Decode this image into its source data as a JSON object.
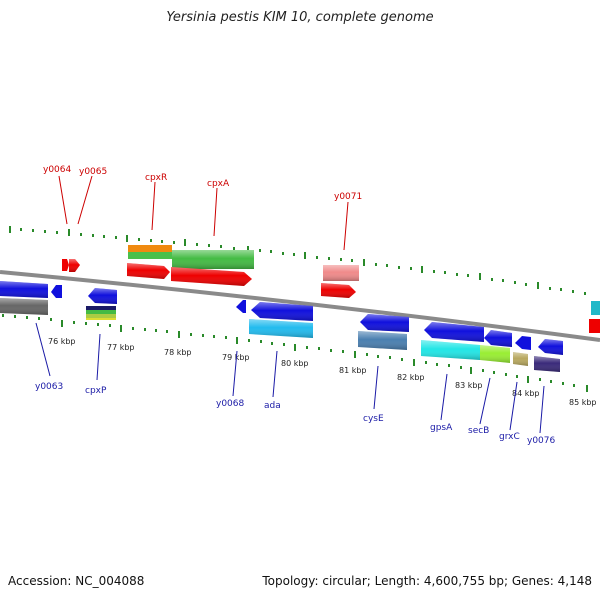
{
  "title": "Yersinia pestis KIM 10, complete genome",
  "footer": {
    "accession": "Accession: NC_004088",
    "summary": "Topology: circular; Length: 4,600,755 bp; Genes: 4,148"
  },
  "colors": {
    "upper_label": "#cc0000",
    "lower_label": "#1a1aa6",
    "tick": "#2a8a2a",
    "backbone": "#8a8a8a"
  },
  "ruler": {
    "unit": "kbp",
    "ticks": [
      {
        "kbp": 76,
        "label": "76 kbp"
      },
      {
        "kbp": 77,
        "label": "77 kbp"
      },
      {
        "kbp": 78,
        "label": "78 kbp"
      },
      {
        "kbp": 79,
        "label": "79 kbp"
      },
      {
        "kbp": 80,
        "label": "80 kbp"
      },
      {
        "kbp": 81,
        "label": "81 kbp"
      },
      {
        "kbp": 82,
        "label": "82 kbp"
      },
      {
        "kbp": 83,
        "label": "83 kbp"
      },
      {
        "kbp": 84,
        "label": "84 kbp"
      },
      {
        "kbp": 85,
        "label": "85 kbp"
      }
    ]
  },
  "genes": [
    {
      "name": "y0063",
      "side": "lower"
    },
    {
      "name": "y0064",
      "side": "upper"
    },
    {
      "name": "y0065",
      "side": "upper"
    },
    {
      "name": "cpxP",
      "side": "lower"
    },
    {
      "name": "cpxR",
      "side": "upper"
    },
    {
      "name": "cpxA",
      "side": "upper"
    },
    {
      "name": "y0068",
      "side": "lower"
    },
    {
      "name": "ada",
      "side": "lower"
    },
    {
      "name": "y0071",
      "side": "upper"
    },
    {
      "name": "cysE",
      "side": "lower"
    },
    {
      "name": "gpsA",
      "side": "lower"
    },
    {
      "name": "secB",
      "side": "lower"
    },
    {
      "name": "grxC",
      "side": "lower"
    },
    {
      "name": "y0076",
      "side": "lower"
    }
  ]
}
